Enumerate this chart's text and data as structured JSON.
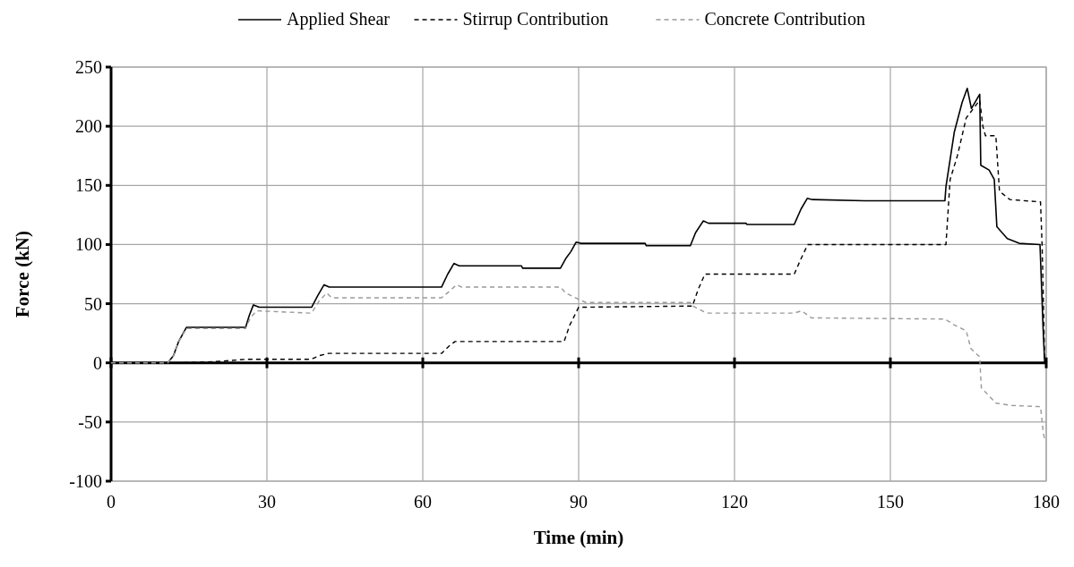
{
  "chart_data": {
    "type": "line",
    "xlabel": "Time (min)",
    "ylabel": "Force (kN)",
    "xlim": [
      0,
      180
    ],
    "xticks": [
      0,
      30,
      60,
      90,
      120,
      150,
      180
    ],
    "ylim": [
      -100,
      250
    ],
    "yticks": [
      -100,
      -50,
      0,
      50,
      100,
      150,
      200,
      250
    ],
    "grid": true,
    "legend": "top",
    "series": [
      {
        "name": "Applied Shear",
        "color": "#000000",
        "line_style": "solid",
        "x": [
          0,
          10.9,
          12,
          13,
          14.5,
          25.9,
          26.6,
          27.4,
          28.5,
          38.6,
          39.8,
          41,
          42,
          63.6,
          64.8,
          66,
          67,
          79,
          79.2,
          86.5,
          87.5,
          88.5,
          89.5,
          90.5,
          102.8,
          103,
          111.5,
          112.5,
          114,
          115,
          122.2,
          122.4,
          131.5,
          132.8,
          134,
          135,
          145,
          160.5,
          160.7,
          162.3,
          163.8,
          164.8,
          165.6,
          167.2,
          167.4,
          169,
          170,
          170.5,
          172.5,
          174.8,
          178.8,
          179.4,
          179.7
        ],
        "values": [
          0,
          0,
          6,
          18,
          30,
          30,
          40,
          49,
          47,
          47,
          57,
          66,
          64,
          64,
          75,
          84,
          82,
          82,
          80,
          80,
          88,
          94,
          102,
          101,
          101,
          99,
          99,
          110,
          120,
          118,
          118,
          117,
          117,
          130,
          139,
          138,
          137,
          137,
          149,
          195,
          220,
          232,
          215,
          227,
          167,
          163,
          155,
          115,
          105,
          101,
          100,
          29,
          0
        ]
      },
      {
        "name": "Stirrup Contribution",
        "color": "#000000",
        "line_style": "dashed",
        "x": [
          0,
          13,
          20,
          26,
          38.5,
          40,
          41.9,
          63.6,
          65,
          66.2,
          87.2,
          88.3,
          90,
          111.9,
          113,
          114.3,
          131.5,
          132.8,
          134.1,
          160.7,
          161.5,
          162.9,
          164.6,
          167.2,
          167.8,
          168.3,
          170.3,
          171,
          173,
          178.9,
          179.2,
          179.4,
          179.7
        ],
        "values": [
          0,
          0,
          1,
          3,
          3,
          6,
          8,
          8,
          14,
          18,
          18,
          32,
          47,
          48,
          62,
          75,
          75,
          88,
          100,
          100,
          155,
          175,
          207,
          222,
          200,
          192,
          192,
          145,
          138,
          136,
          100,
          64,
          0
        ]
      },
      {
        "name": "Concrete Contribution",
        "color": "#999999",
        "line_style": "dashed",
        "x": [
          0,
          10.9,
          12,
          13,
          14.5,
          25.9,
          26.8,
          28,
          38.6,
          40,
          41.5,
          42.5,
          63.6,
          65,
          66.5,
          67.5,
          86.5,
          87.5,
          90.3,
          91.4,
          111.5,
          112,
          114.2,
          115,
          131.5,
          132.9,
          134.8,
          160.5,
          162.3,
          164.6,
          165.5,
          167.2,
          167.5,
          170.3,
          173.2,
          178.9,
          179.4,
          179.7
        ],
        "values": [
          0,
          0,
          6,
          18,
          29,
          29,
          38,
          44,
          42,
          52,
          59,
          55,
          55,
          60,
          66,
          64,
          64,
          59,
          53,
          51,
          51,
          48,
          43,
          42,
          42,
          44,
          38,
          37,
          32,
          27,
          12,
          5,
          -21,
          -34,
          -36,
          -37,
          -58,
          -65
        ]
      }
    ]
  }
}
